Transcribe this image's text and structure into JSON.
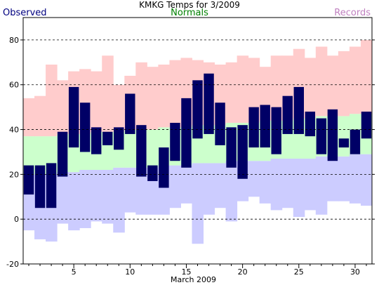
{
  "chart_data": {
    "type": "bar",
    "title": "KMKG Temps for 3/2009",
    "legend": {
      "observed": "Observed",
      "normals": "Normals",
      "records": "Records"
    },
    "xlabel": "March 2009",
    "ylabel": "",
    "xlim": [
      1,
      31
    ],
    "ylim": [
      -20,
      90
    ],
    "x_ticks": [
      5,
      10,
      15,
      20,
      25,
      30
    ],
    "y_ticks": [
      -20,
      0,
      20,
      40,
      60,
      80
    ],
    "grid": true,
    "days": [
      1,
      2,
      3,
      4,
      5,
      6,
      7,
      8,
      9,
      10,
      11,
      12,
      13,
      14,
      15,
      16,
      17,
      18,
      19,
      20,
      21,
      22,
      23,
      24,
      25,
      26,
      27,
      28,
      29,
      30,
      31
    ],
    "series": [
      {
        "name": "Records",
        "color": "#ffcccc",
        "key": "records",
        "low": [
          -5,
          -9,
          -10,
          -2,
          -5,
          -4,
          -1,
          -2,
          -6,
          3,
          2,
          2,
          2,
          5,
          7,
          -11,
          2,
          5,
          -1,
          8,
          10,
          7,
          4,
          5,
          1,
          4,
          2,
          8,
          8,
          7,
          6
        ],
        "high": [
          54,
          55,
          69,
          62,
          66,
          67,
          66,
          73,
          60,
          64,
          70,
          68,
          69,
          71,
          72,
          71,
          70,
          69,
          70,
          73,
          72,
          68,
          73,
          73,
          76,
          72,
          77,
          73,
          75,
          77,
          80
        ]
      },
      {
        "name": "Normals",
        "key": "normals",
        "low_color": "#ccccff",
        "high_color": "#ccffcc",
        "low": [
          20,
          20,
          20,
          21,
          21,
          22,
          22,
          22,
          23,
          23,
          23,
          23,
          24,
          24,
          24,
          25,
          25,
          25,
          26,
          26,
          26,
          26,
          27,
          27,
          27,
          27,
          28,
          28,
          28,
          29,
          29
        ],
        "high": [
          37,
          37,
          37,
          38,
          38,
          38,
          39,
          39,
          39,
          40,
          40,
          40,
          41,
          41,
          41,
          42,
          42,
          42,
          43,
          43,
          43,
          44,
          44,
          44,
          45,
          45,
          46,
          46,
          46,
          47,
          47
        ]
      },
      {
        "name": "Observed",
        "key": "observed",
        "color": "#000066",
        "low": [
          11,
          5,
          5,
          19,
          32,
          30,
          29,
          33,
          31,
          38,
          19,
          17,
          14,
          26,
          23,
          36,
          38,
          33,
          23,
          18,
          32,
          32,
          29,
          38,
          38,
          37,
          29,
          26,
          32,
          29,
          36
        ],
        "high": [
          24,
          24,
          25,
          39,
          59,
          52,
          41,
          39,
          41,
          56,
          42,
          24,
          32,
          43,
          54,
          62,
          65,
          52,
          41,
          42,
          50,
          51,
          50,
          55,
          59,
          48,
          45,
          49,
          36,
          40,
          48
        ]
      }
    ]
  }
}
